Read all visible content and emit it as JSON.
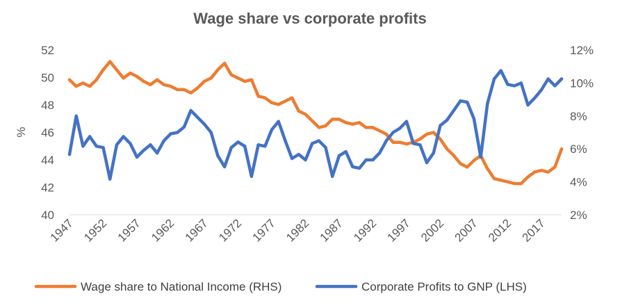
{
  "chart_data": {
    "type": "line",
    "title": "Wage share vs corporate profits",
    "ylabel_left": "%",
    "ylim_left": [
      40,
      52
    ],
    "yticks_left": [
      "40",
      "42",
      "44",
      "46",
      "48",
      "50",
      "52"
    ],
    "ylim_right": [
      2,
      12
    ],
    "yticks_right": [
      "2%",
      "4%",
      "6%",
      "8%",
      "10%",
      "12%"
    ],
    "xlim": [
      1947,
      2020
    ],
    "xticks": [
      "1947",
      "1952",
      "1957",
      "1962",
      "1967",
      "1972",
      "1977",
      "1982",
      "1987",
      "1992",
      "1997",
      "2002",
      "2007",
      "2012",
      "2017"
    ],
    "x": [
      1947,
      1948,
      1949,
      1950,
      1951,
      1952,
      1953,
      1954,
      1955,
      1956,
      1957,
      1958,
      1959,
      1960,
      1961,
      1962,
      1963,
      1964,
      1965,
      1966,
      1967,
      1968,
      1969,
      1970,
      1971,
      1972,
      1973,
      1974,
      1975,
      1976,
      1977,
      1978,
      1979,
      1980,
      1981,
      1982,
      1983,
      1984,
      1985,
      1986,
      1987,
      1988,
      1989,
      1990,
      1991,
      1992,
      1993,
      1994,
      1995,
      1996,
      1997,
      1998,
      1999,
      2000,
      2001,
      2002,
      2003,
      2004,
      2005,
      2006,
      2007,
      2008,
      2009,
      2010,
      2011,
      2012,
      2013,
      2014,
      2015,
      2016,
      2017,
      2018,
      2019,
      2020
    ],
    "series": [
      {
        "name": "Wage share to National Income (RHS)",
        "color": "#ed7d31",
        "axis": "right",
        "values": [
          10.2,
          9.8,
          10.0,
          9.8,
          10.2,
          10.8,
          11.3,
          10.8,
          10.3,
          10.6,
          10.4,
          10.1,
          9.9,
          10.2,
          9.9,
          9.8,
          9.6,
          9.6,
          9.4,
          9.7,
          10.1,
          10.3,
          10.8,
          11.2,
          10.5,
          10.3,
          10.1,
          10.2,
          9.2,
          9.1,
          8.8,
          8.7,
          8.9,
          9.1,
          8.3,
          8.1,
          7.7,
          7.3,
          7.4,
          7.8,
          7.8,
          7.6,
          7.5,
          7.6,
          7.3,
          7.3,
          7.1,
          6.9,
          6.4,
          6.4,
          6.3,
          6.4,
          6.6,
          6.9,
          7.0,
          6.6,
          6.0,
          5.6,
          5.1,
          4.9,
          5.3,
          5.6,
          4.8,
          4.2,
          4.1,
          4.0,
          3.9,
          3.9,
          4.3,
          4.6,
          4.7,
          4.6,
          4.9,
          6.0
        ]
      },
      {
        "name": "Corporate Profits to GNP (LHS)",
        "color": "#4472c4",
        "axis": "left",
        "values": [
          44.4,
          47.2,
          45.0,
          45.7,
          45.0,
          44.9,
          42.6,
          45.1,
          45.7,
          45.2,
          44.2,
          44.7,
          45.1,
          44.5,
          45.4,
          45.9,
          46.0,
          46.4,
          47.6,
          47.1,
          46.6,
          46.0,
          44.3,
          43.5,
          44.9,
          45.3,
          45.0,
          42.8,
          45.1,
          45.0,
          46.2,
          46.8,
          45.4,
          44.1,
          44.4,
          44.0,
          45.2,
          45.4,
          44.9,
          42.8,
          44.3,
          44.6,
          43.5,
          43.4,
          44.0,
          44.0,
          44.5,
          45.4,
          46.0,
          46.3,
          46.8,
          45.2,
          45.1,
          43.8,
          44.5,
          46.5,
          46.9,
          47.6,
          48.3,
          48.2,
          47.0,
          44.2,
          48.1,
          49.9,
          50.5,
          49.5,
          49.4,
          49.6,
          48.0,
          48.5,
          49.1,
          49.9,
          49.4,
          49.9
        ]
      }
    ],
    "legend_position": "bottom"
  }
}
